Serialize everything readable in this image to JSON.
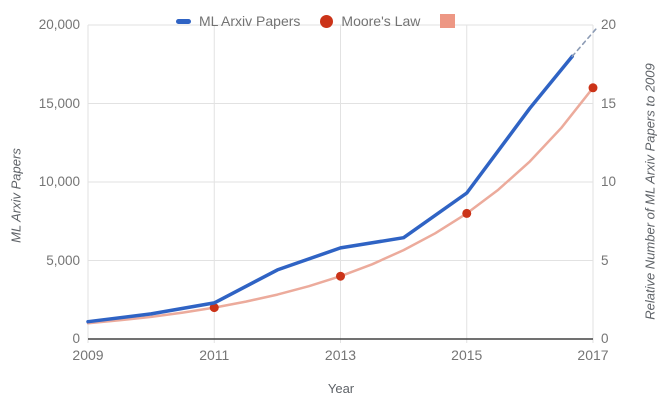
{
  "legend": {
    "items": [
      {
        "label": "ML Arxiv Papers",
        "marker": "dash",
        "color": "#2f63c4"
      },
      {
        "label": "Moore's Law",
        "marker": "circle",
        "color": "#cb3318"
      },
      {
        "label": "",
        "marker": "square",
        "color": "#ed9784"
      }
    ]
  },
  "colors": {
    "grid": "#e2e2e2",
    "axis_line": "#424242",
    "tick_label": "#757575",
    "axis_title": "#5f6368",
    "legend_text": "#737373",
    "projection": "#8d9cb5"
  },
  "chart_data": {
    "type": "line",
    "title": "",
    "xlabel": "Year",
    "ylabel_left": "ML Arxiv Papers",
    "ylabel_right": "Relative Number of ML Arxiv Papers  to 2009",
    "grid": true,
    "legend_position": "top",
    "x_range": [
      2009,
      2017
    ],
    "y_left_range": [
      0,
      20000
    ],
    "y_right_range": [
      0,
      20
    ],
    "x_ticks": [
      {
        "label": "2009",
        "value": 2009
      },
      {
        "label": "2011",
        "value": 2011
      },
      {
        "label": "2013",
        "value": 2013
      },
      {
        "label": "2015",
        "value": 2015
      },
      {
        "label": "2017",
        "value": 2017
      }
    ],
    "y_left_ticks": [
      {
        "label": "0",
        "value": 0
      },
      {
        "label": "5,000",
        "value": 5000
      },
      {
        "label": "10,000",
        "value": 10000
      },
      {
        "label": "15,000",
        "value": 15000
      },
      {
        "label": "20,000",
        "value": 20000
      }
    ],
    "y_right_ticks": [
      {
        "label": "0",
        "value": 0
      },
      {
        "label": "5",
        "value": 5
      },
      {
        "label": "10",
        "value": 10
      },
      {
        "label": "15",
        "value": 15
      },
      {
        "label": "20",
        "value": 20
      }
    ],
    "series": [
      {
        "name": "Moore's Law",
        "axis": "right",
        "color": "#ecab9c",
        "width": 2.5,
        "style": "solid",
        "points": [
          [
            2009,
            1
          ],
          [
            2009.5,
            1.19
          ],
          [
            2010,
            1.41
          ],
          [
            2010.5,
            1.68
          ],
          [
            2011,
            2
          ],
          [
            2011.5,
            2.38
          ],
          [
            2012,
            2.83
          ],
          [
            2012.5,
            3.36
          ],
          [
            2013,
            4
          ],
          [
            2013.5,
            4.76
          ],
          [
            2014,
            5.66
          ],
          [
            2014.5,
            6.73
          ],
          [
            2015,
            8
          ],
          [
            2015.5,
            9.51
          ],
          [
            2016,
            11.31
          ],
          [
            2016.5,
            13.45
          ],
          [
            2017,
            16
          ]
        ],
        "markers": [
          [
            2011,
            2
          ],
          [
            2013,
            4
          ],
          [
            2015,
            8
          ],
          [
            2017,
            16
          ]
        ],
        "marker_color": "#cb3318",
        "marker_radius": 4.5
      },
      {
        "name": "ML Arxiv Papers",
        "axis": "left",
        "color": "#2f63c4",
        "width": 3.5,
        "style": "solid",
        "points": [
          [
            2009,
            1100
          ],
          [
            2010,
            1600
          ],
          [
            2011,
            2300
          ],
          [
            2012,
            4400
          ],
          [
            2013,
            5800
          ],
          [
            2014,
            6450
          ],
          [
            2015,
            9300
          ],
          [
            2016,
            14700
          ],
          [
            2016.67,
            18000
          ]
        ]
      },
      {
        "name": "ML Arxiv Papers projection",
        "axis": "left",
        "color": "#8d9cb5",
        "width": 1.6,
        "style": "dashed",
        "points": [
          [
            2016.67,
            18000
          ],
          [
            2017.08,
            19900
          ]
        ]
      }
    ]
  }
}
